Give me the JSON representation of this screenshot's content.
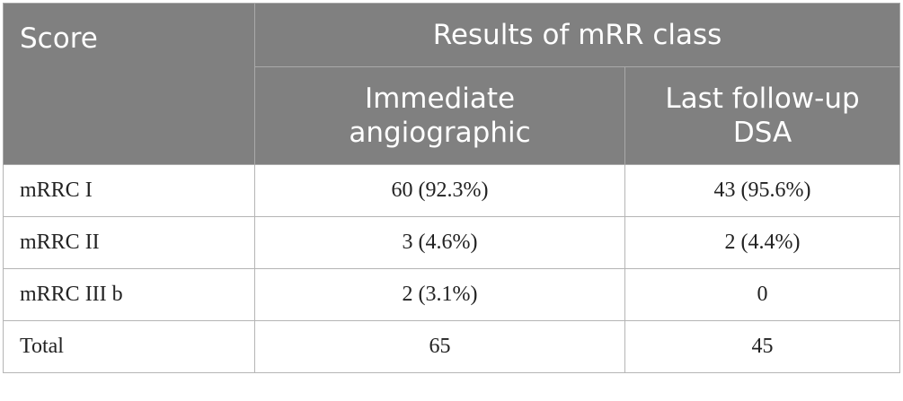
{
  "table": {
    "header": {
      "score": "Score",
      "group": "Results of mRR class",
      "sub": [
        {
          "line1": "Immediate",
          "line2": "angiographic"
        },
        {
          "line1": "Last follow-up",
          "line2": "DSA"
        }
      ]
    },
    "rows": [
      {
        "label": "mRRC I",
        "immediate": "60 (92.3%)",
        "last": "43 (95.6%)"
      },
      {
        "label": "mRRC II",
        "immediate": "3 (4.6%)",
        "last": "2 (4.4%)"
      },
      {
        "label": "mRRC III b",
        "immediate": "2 (3.1%)",
        "last": "0"
      },
      {
        "label": "Total",
        "immediate": "65",
        "last": "45"
      }
    ]
  }
}
